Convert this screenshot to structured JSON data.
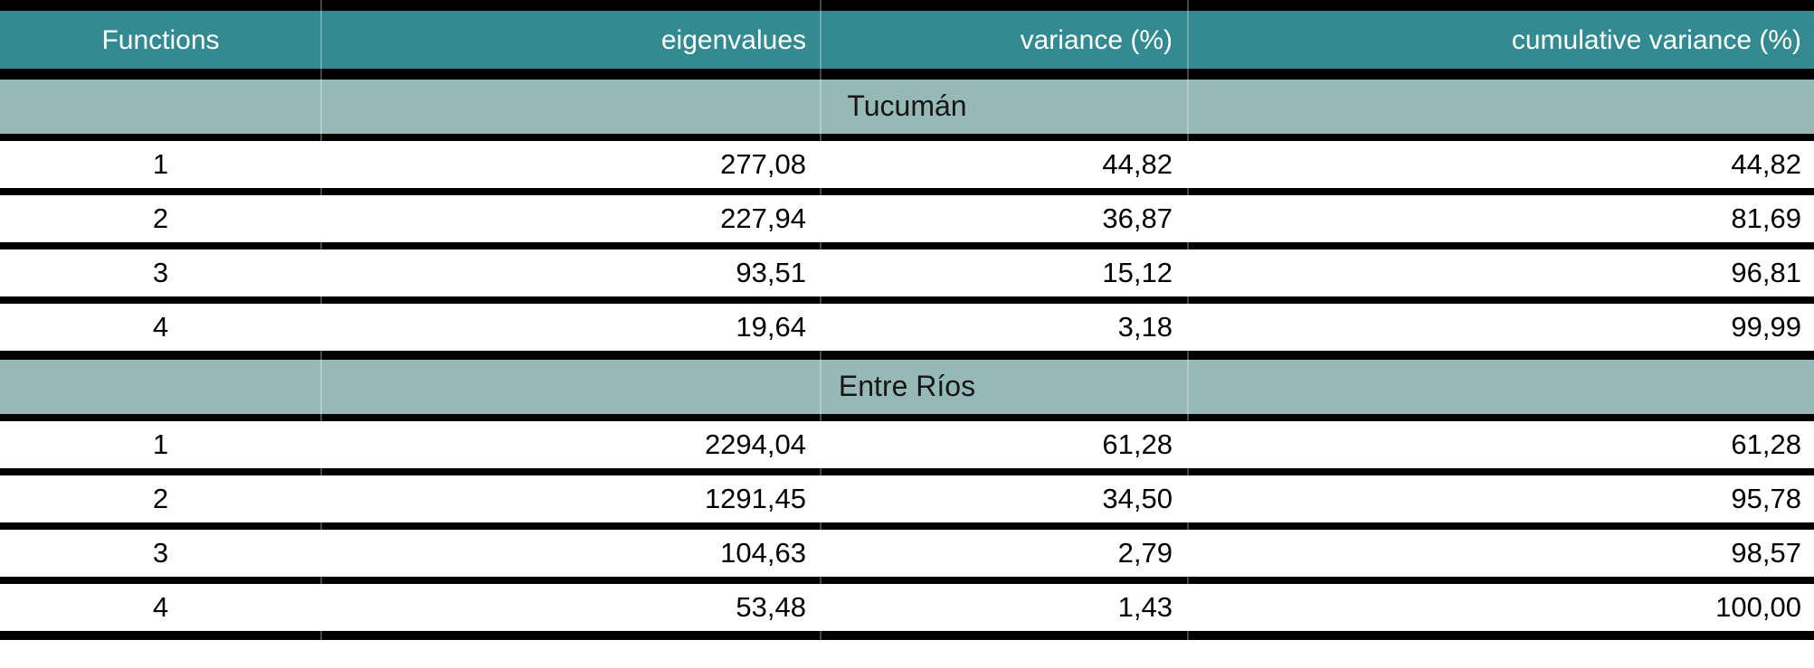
{
  "table": {
    "columns": [
      {
        "label": "Functions"
      },
      {
        "label": "eigenvalues"
      },
      {
        "label": "variance (%)"
      },
      {
        "label": "cumulative variance (%)"
      }
    ],
    "sections": [
      {
        "title": "Tucumán",
        "rows": [
          [
            "1",
            "277,08",
            "44,82",
            "44,82"
          ],
          [
            "2",
            "227,94",
            "36,87",
            "81,69"
          ],
          [
            "3",
            "93,51",
            "15,12",
            "96,81"
          ],
          [
            "4",
            "19,64",
            "3,18",
            "99,99"
          ]
        ]
      },
      {
        "title": "Entre Ríos",
        "rows": [
          [
            "1",
            "2294,04",
            "61,28",
            "61,28"
          ],
          [
            "2",
            "1291,45",
            "34,50",
            "95,78"
          ],
          [
            "3",
            "104,63",
            "2,79",
            "98,57"
          ],
          [
            "4",
            "53,48",
            "1,43",
            "100,00"
          ]
        ]
      }
    ],
    "colors": {
      "header_bg": "#338a90",
      "header_text": "#ffffff",
      "section_bg": "#97b9b5",
      "section_text": "#161616",
      "rule": "#000000",
      "row_bg": "#ffffff"
    }
  },
  "chart_data": {
    "type": "table",
    "title": "",
    "columns": [
      "Functions",
      "eigenvalues",
      "variance (%)",
      "cumulative variance (%)"
    ],
    "groups": [
      {
        "name": "Tucumán",
        "rows": [
          [
            1,
            277.08,
            44.82,
            44.82
          ],
          [
            2,
            227.94,
            36.87,
            81.69
          ],
          [
            3,
            93.51,
            15.12,
            96.81
          ],
          [
            4,
            19.64,
            3.18,
            99.99
          ]
        ]
      },
      {
        "name": "Entre Ríos",
        "rows": [
          [
            1,
            2294.04,
            61.28,
            61.28
          ],
          [
            2,
            1291.45,
            34.5,
            95.78
          ],
          [
            3,
            104.63,
            2.79,
            98.57
          ],
          [
            4,
            53.48,
            1.43,
            100.0
          ]
        ]
      }
    ],
    "notes": "Decimal comma formatting as rendered in source image"
  }
}
